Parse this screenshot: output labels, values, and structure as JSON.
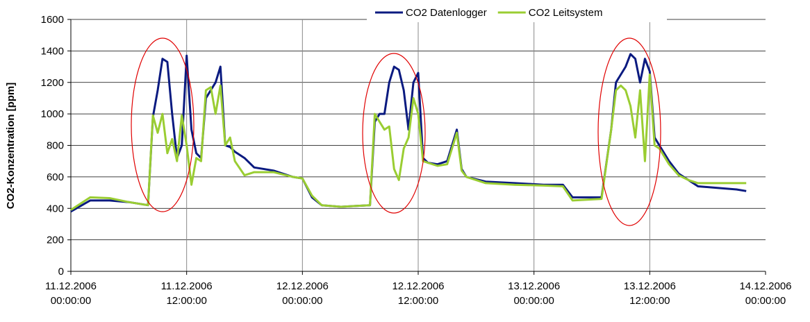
{
  "chart_data": {
    "type": "line",
    "y_label": "CO2-Konzentration [ppm]",
    "x": [
      "11.12.2006 00:00:00",
      "11.12.2006 02:00:00",
      "11.12.2006 04:00:00",
      "11.12.2006 06:00:00",
      "11.12.2006 08:00:00",
      "11.12.2006 08:30:00",
      "11.12.2006 09:00:00",
      "11.12.2006 09:30:00",
      "11.12.2006 10:00:00",
      "11.12.2006 10:30:00",
      "11.12.2006 11:00:00",
      "11.12.2006 11:30:00",
      "11.12.2006 12:00:00",
      "11.12.2006 12:30:00",
      "11.12.2006 13:00:00",
      "11.12.2006 13:30:00",
      "11.12.2006 14:00:00",
      "11.12.2006 14:30:00",
      "11.12.2006 15:00:00",
      "11.12.2006 15:30:00",
      "11.12.2006 16:00:00",
      "11.12.2006 16:30:00",
      "11.12.2006 17:00:00",
      "11.12.2006 18:00:00",
      "11.12.2006 19:00:00",
      "11.12.2006 21:00:00",
      "11.12.2006 23:00:00",
      "12.12.2006 00:00:00",
      "12.12.2006 01:00:00",
      "12.12.2006 02:00:00",
      "12.12.2006 04:00:00",
      "12.12.2006 07:00:00",
      "12.12.2006 07:30:00",
      "12.12.2006 08:00:00",
      "12.12.2006 08:30:00",
      "12.12.2006 09:00:00",
      "12.12.2006 09:30:00",
      "12.12.2006 10:00:00",
      "12.12.2006 10:30:00",
      "12.12.2006 11:00:00",
      "12.12.2006 11:30:00",
      "12.12.2006 12:00:00",
      "12.12.2006 12:30:00",
      "12.12.2006 13:00:00",
      "12.12.2006 14:00:00",
      "12.12.2006 15:00:00",
      "12.12.2006 16:00:00",
      "12.12.2006 16:30:00",
      "12.12.2006 17:00:00",
      "12.12.2006 19:00:00",
      "12.12.2006 22:00:00",
      "13.12.2006 01:00:00",
      "13.12.2006 03:00:00",
      "13.12.2006 04:00:00",
      "13.12.2006 07:00:00",
      "13.12.2006 08:00:00",
      "13.12.2006 08:30:00",
      "13.12.2006 09:00:00",
      "13.12.2006 09:30:00",
      "13.12.2006 10:00:00",
      "13.12.2006 10:30:00",
      "13.12.2006 11:00:00",
      "13.12.2006 11:30:00",
      "13.12.2006 12:00:00",
      "13.12.2006 12:30:00",
      "13.12.2006 13:00:00",
      "13.12.2006 14:00:00",
      "13.12.2006 15:00:00",
      "13.12.2006 16:00:00",
      "13.12.2006 17:00:00",
      "13.12.2006 19:00:00",
      "13.12.2006 21:00:00",
      "13.12.2006 22:00:00"
    ],
    "series": [
      {
        "name": "CO2 Datenlogger",
        "color": "#0a1a80",
        "values": [
          380,
          450,
          450,
          440,
          420,
          980,
          1150,
          1350,
          1330,
          1000,
          720,
          800,
          1370,
          900,
          750,
          720,
          1100,
          1150,
          1200,
          1300,
          800,
          790,
          760,
          720,
          660,
          640,
          600,
          590,
          470,
          420,
          410,
          420,
          950,
          1000,
          1000,
          1200,
          1300,
          1280,
          1150,
          900,
          1200,
          1260,
          720,
          690,
          680,
          700,
          900,
          650,
          600,
          570,
          560,
          550,
          550,
          470,
          470,
          900,
          1200,
          1250,
          1300,
          1380,
          1350,
          1200,
          1350,
          1270,
          850,
          800,
          700,
          620,
          580,
          540,
          530,
          520,
          510
        ]
      },
      {
        "name": "CO2 Leitsystem",
        "color": "#9acd32",
        "values": [
          390,
          470,
          465,
          440,
          420,
          990,
          880,
          1000,
          750,
          840,
          700,
          990,
          800,
          550,
          720,
          700,
          1150,
          1170,
          1000,
          1180,
          800,
          850,
          700,
          610,
          630,
          630,
          600,
          590,
          480,
          420,
          410,
          420,
          1000,
          950,
          900,
          920,
          650,
          580,
          780,
          850,
          1100,
          1000,
          700,
          690,
          670,
          680,
          880,
          640,
          600,
          560,
          550,
          545,
          540,
          450,
          460,
          900,
          1150,
          1180,
          1150,
          1050,
          850,
          1150,
          700,
          1250,
          800,
          780,
          680,
          610,
          580,
          560,
          560,
          560,
          560
        ]
      }
    ],
    "xlim": [
      "11.12.2006 00:00:00",
      "14.12.2006 00:00:00"
    ],
    "xticks": [
      {
        "value": "11.12.2006 00:00:00",
        "label": [
          "11.12.2006",
          "00:00:00"
        ]
      },
      {
        "value": "11.12.2006 12:00:00",
        "label": [
          "11.12.2006",
          "12:00:00"
        ]
      },
      {
        "value": "12.12.2006 00:00:00",
        "label": [
          "12.12.2006",
          "00:00:00"
        ]
      },
      {
        "value": "12.12.2006 12:00:00",
        "label": [
          "12.12.2006",
          "12:00:00"
        ]
      },
      {
        "value": "13.12.2006 00:00:00",
        "label": [
          "13.12.2006",
          "00:00:00"
        ]
      },
      {
        "value": "13.12.2006 12:00:00",
        "label": [
          "13.12.2006",
          "12:00:00"
        ]
      },
      {
        "value": "14.12.2006 00:00:00",
        "label": [
          "14.12.2006",
          "00:00:00"
        ]
      }
    ],
    "ylim": [
      0,
      1600
    ],
    "yticks": [
      0,
      200,
      400,
      600,
      800,
      1000,
      1200,
      1400,
      1600
    ],
    "grid": true,
    "legend": "top"
  }
}
